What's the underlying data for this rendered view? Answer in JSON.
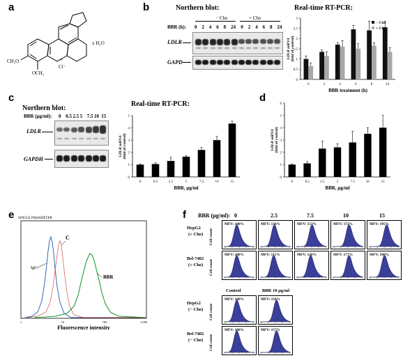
{
  "panels": {
    "a": {
      "label": "a",
      "molecule": {
        "methoxy1": "CH₃O",
        "methoxy2": "OCH₃",
        "counterion": "Cl⁻",
        "charge": "+",
        "hydrate": "x H₂O"
      }
    },
    "b": {
      "label": "b",
      "northern_title": "Northern blot:",
      "minus_cho": "− Cho",
      "plus_cho": "+ Cho",
      "time_label": "BBR (h):",
      "time_points": [
        "0",
        "2",
        "4",
        "6",
        "8",
        "24",
        "0",
        "2",
        "4",
        "6",
        "8",
        "24"
      ],
      "ldlr": "LDLR",
      "gapd": "GAPD",
      "rtpcr_title": "Real-time RT-PCR:"
    },
    "c": {
      "label": "c",
      "northern_title": "Northern blot:",
      "dose_label": "BBR (µg/ml):",
      "doses": [
        "0",
        "0.5",
        "2.5",
        "5",
        "7.5",
        "10",
        "15"
      ],
      "ldlr": "LDLR",
      "gapdh": "GAPDH",
      "rtpcr_title": "Real-time RT-PCR:"
    },
    "d": {
      "label": "d"
    },
    "e": {
      "label": "e",
      "header": "SINGLE PARAMETER",
      "ticks": [
        "1",
        "10",
        "100",
        "1,000"
      ],
      "xlabel": "Fluorescence intensity",
      "peak_igg": "IgG",
      "peak_c": "C",
      "peak_bbr": "BBR"
    },
    "f": {
      "label": "f",
      "dose_label": "BBR (µg/ml):",
      "doses": [
        "0",
        "2.5",
        "7.5",
        "10",
        "15"
      ],
      "ylabel": "Cell count",
      "rows": [
        {
          "name": "HepG2",
          "cond": "(+ Cho)",
          "mfv": [
            "MFV: 100%",
            "MFV: 136%",
            "MFV: 153%",
            "MFV: 172%",
            "MFV: 195%"
          ]
        },
        {
          "name": "Bel-7402",
          "cond": "(+ Cho)",
          "mfv": [
            "MFV: 100%",
            "MFV: 115%",
            "MFV: 120%",
            "MFV: 177%",
            "MFV: 160%"
          ]
        }
      ],
      "bottom_headers": [
        "Control",
        "BBR 10 µg/ml"
      ],
      "bottom_rows": [
        {
          "name": "HepG2",
          "cond": "(− Cho)",
          "mfv": [
            "MFV: 100%",
            "MFV: 158%"
          ]
        },
        {
          "name": "Bel-7402",
          "cond": "(− Cho)",
          "mfv": [
            "MFV: 100%",
            "MFV: 157%"
          ]
        }
      ]
    }
  },
  "chart_data": [
    {
      "id": "b-rtpcr",
      "type": "bar",
      "categories": [
        "0",
        "2",
        "4",
        "6",
        "8",
        "24"
      ],
      "series": [
        {
          "name": "− Cho",
          "color": "#111111",
          "values": [
            1.0,
            1.35,
            1.7,
            2.45,
            2.4,
            2.55
          ],
          "errors": [
            0.15,
            0.1,
            0.1,
            0.2,
            0.45,
            0.3
          ]
        },
        {
          "name": "+ Cho",
          "color": "#a8a8a8",
          "values": [
            0.65,
            1.15,
            1.6,
            1.5,
            1.65,
            1.35
          ],
          "errors": [
            0.15,
            0.2,
            0.3,
            0.25,
            0.15,
            0.2
          ]
        }
      ],
      "xlabel": "BBR treatment (h)",
      "ylabel": "LDLR mRNA (fold of control)",
      "yticks": [
        "0",
        "0.5",
        "1",
        "1.5",
        "2",
        "2.5",
        "3"
      ],
      "ylim": [
        0,
        3
      ],
      "legend": "top-right"
    },
    {
      "id": "c-rtpcr",
      "type": "bar",
      "categories": [
        "0",
        "0.5",
        "2.5",
        "5",
        "7.5",
        "10",
        "15"
      ],
      "series": [
        {
          "color": "#000000",
          "values": [
            1.0,
            1.05,
            1.3,
            1.65,
            2.2,
            3.0,
            4.35
          ],
          "errors": [
            0.05,
            0.1,
            0.3,
            0.1,
            0.2,
            0.3,
            0.2
          ]
        }
      ],
      "xlabel": "BBR, µg/ml",
      "ylabel": "LDLR mRNA (fold of control)",
      "yticks": [
        "0",
        "1",
        "2",
        "3",
        "4",
        "5"
      ],
      "ylim": [
        0,
        5
      ]
    },
    {
      "id": "d",
      "type": "bar",
      "categories": [
        "0",
        "0.5",
        "2.5",
        "5",
        "7.5",
        "10",
        "15"
      ],
      "series": [
        {
          "color": "#000000",
          "values": [
            1.0,
            1.1,
            2.3,
            2.4,
            2.8,
            3.5,
            4.0
          ],
          "errors": [
            0.05,
            0.15,
            0.6,
            0.3,
            0.9,
            0.5,
            1.0
          ]
        }
      ],
      "xlabel": "BBR, µg/ml",
      "ylabel": "LDLR mRNA (fold of control)",
      "yticks": [
        "0",
        "1",
        "2",
        "3",
        "4",
        "5",
        "6"
      ],
      "ylim": [
        0,
        6
      ]
    }
  ]
}
